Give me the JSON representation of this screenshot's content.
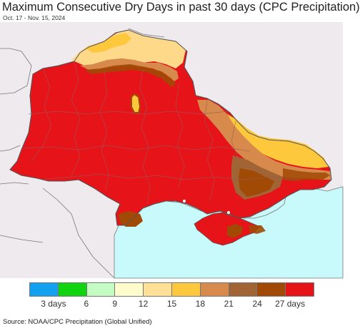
{
  "title": "Maximum Consecutive Dry Days in past 30 days (CPC Precipitation)",
  "subtitle": "Oct. 17 - Nov. 15, 2024",
  "source": "Source: NOAA/CPC Precipitation (Global Unified)",
  "colors": {
    "background": "#eeeaee",
    "sea": "#c8fafc",
    "border": "#6f6f6f"
  },
  "legend": {
    "colors": [
      "#12a1f0",
      "#10d410",
      "#c4fcc4",
      "#fefccc",
      "#fee096",
      "#fec83c",
      "#d8894c",
      "#a16434",
      "#a04a05",
      "#e61319"
    ],
    "labels": [
      {
        "text": "3 days",
        "pos": 1
      },
      {
        "text": "6",
        "pos": 2
      },
      {
        "text": "9",
        "pos": 3
      },
      {
        "text": "12",
        "pos": 4
      },
      {
        "text": "15",
        "pos": 5
      },
      {
        "text": "18",
        "pos": 6
      },
      {
        "text": "21",
        "pos": 7
      },
      {
        "text": "24",
        "pos": 8
      },
      {
        "text": "27 days",
        "pos": 9
      }
    ]
  }
}
